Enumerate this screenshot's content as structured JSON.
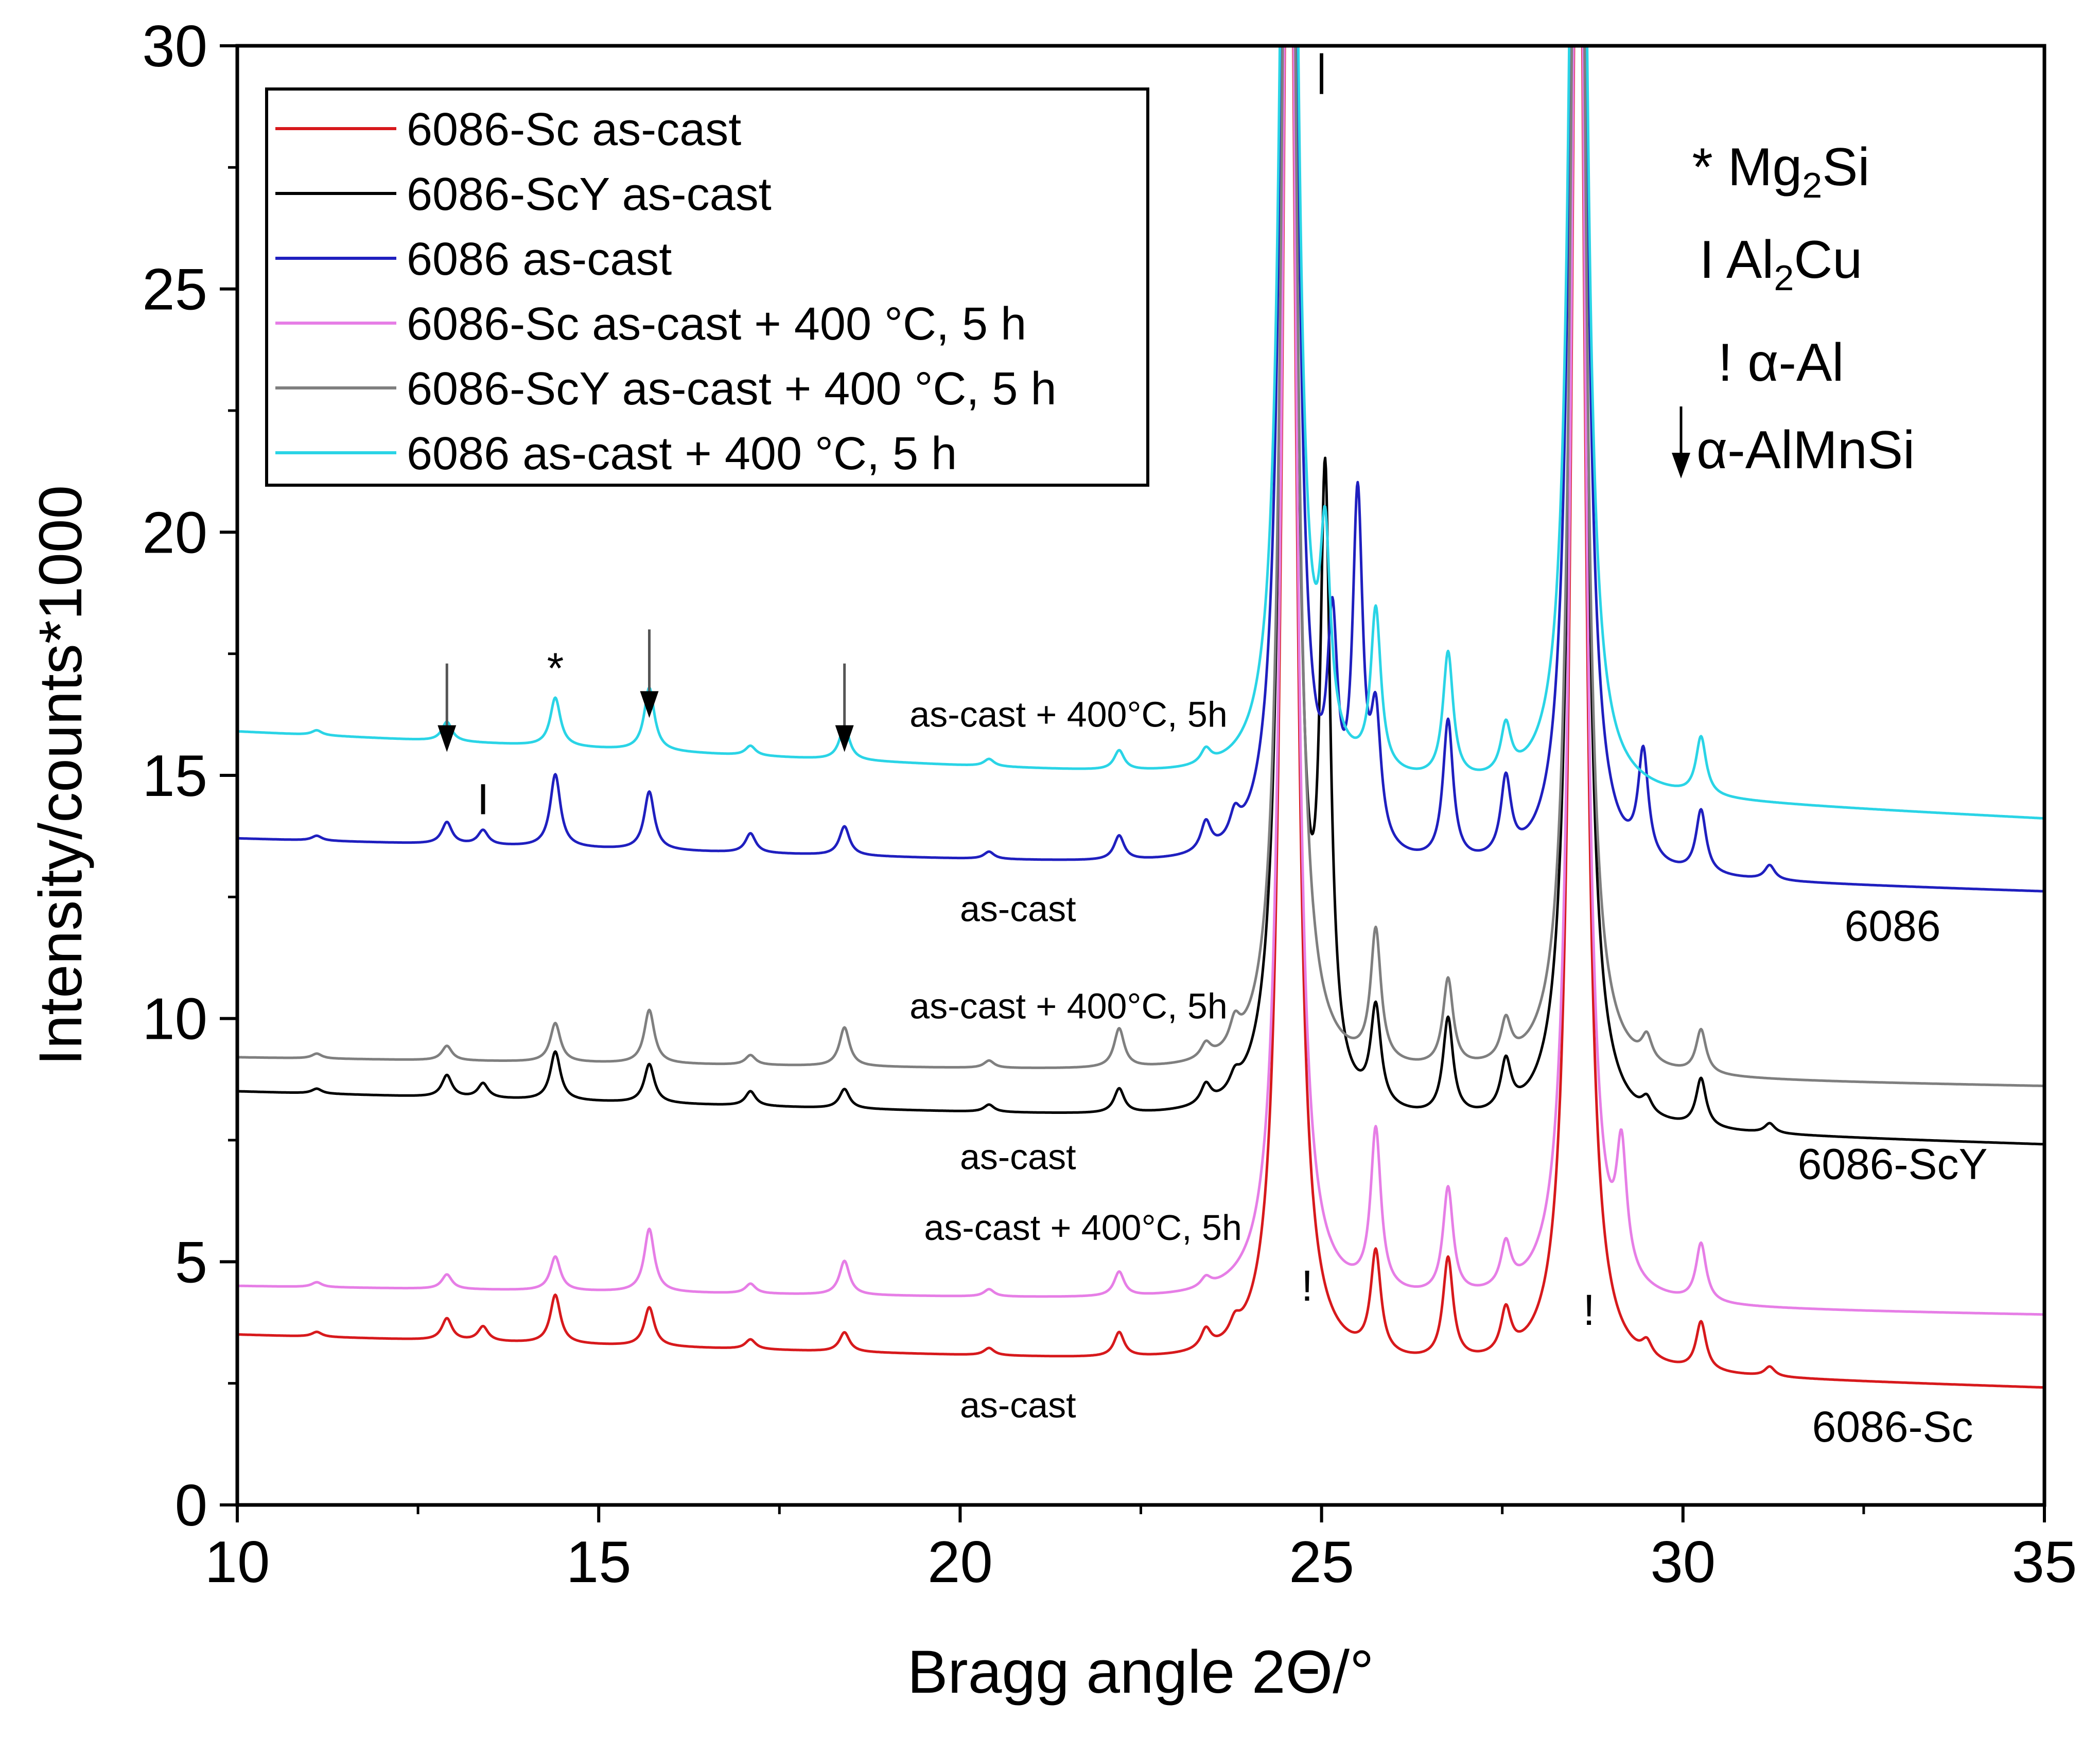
{
  "chart_data": {
    "type": "line",
    "xlabel": "Bragg angle 2Θ/°",
    "ylabel": "Intensity/counts*1000",
    "xlim": [
      10,
      35
    ],
    "ylim": [
      0,
      30
    ],
    "xticks": [
      10,
      15,
      20,
      25,
      30,
      35
    ],
    "yticks": [
      0,
      5,
      10,
      15,
      20,
      25,
      30
    ],
    "legend": {
      "position": "top-left"
    },
    "series": [
      {
        "name": "6086-Sc as-cast",
        "color": "#d7191c",
        "base_start": 3.5,
        "base_end": 2.4,
        "peaks": [
          [
            11.1,
            0.1
          ],
          [
            12.9,
            0.45
          ],
          [
            13.4,
            0.3
          ],
          [
            14.4,
            1.0
          ],
          [
            15.7,
            0.8
          ],
          [
            17.1,
            0.2
          ],
          [
            18.4,
            0.4
          ],
          [
            20.4,
            0.15
          ],
          [
            22.2,
            0.5
          ],
          [
            23.4,
            0.4
          ],
          [
            23.8,
            0.3
          ],
          [
            24.55,
            35
          ],
          [
            25.75,
            2.1
          ],
          [
            26.75,
            2.1
          ],
          [
            27.55,
            0.9
          ],
          [
            28.55,
            35
          ],
          [
            29.5,
            0.3
          ],
          [
            30.25,
            1.0
          ],
          [
            31.2,
            0.2
          ]
        ]
      },
      {
        "name": "6086-ScY as-cast",
        "color": "#000000",
        "base_start": 8.5,
        "base_end": 7.4,
        "peaks": [
          [
            11.1,
            0.1
          ],
          [
            12.9,
            0.45
          ],
          [
            13.4,
            0.3
          ],
          [
            14.4,
            1.0
          ],
          [
            15.7,
            0.8
          ],
          [
            17.1,
            0.3
          ],
          [
            18.4,
            0.4
          ],
          [
            20.4,
            0.15
          ],
          [
            22.2,
            0.5
          ],
          [
            23.4,
            0.4
          ],
          [
            23.8,
            0.3
          ],
          [
            24.55,
            35
          ],
          [
            25.05,
            12.0
          ],
          [
            25.75,
            2.0
          ],
          [
            26.75,
            2.0
          ],
          [
            27.55,
            1.0
          ],
          [
            28.55,
            35
          ],
          [
            29.5,
            0.3
          ],
          [
            30.25,
            1.0
          ],
          [
            31.2,
            0.2
          ]
        ]
      },
      {
        "name": "6086 as-cast",
        "color": "#1f1fbf",
        "base_start": 13.7,
        "base_end": 12.6,
        "peaks": [
          [
            11.1,
            0.1
          ],
          [
            12.9,
            0.45
          ],
          [
            13.4,
            0.3
          ],
          [
            14.4,
            1.5
          ],
          [
            15.7,
            1.2
          ],
          [
            17.1,
            0.4
          ],
          [
            18.4,
            0.6
          ],
          [
            20.4,
            0.15
          ],
          [
            22.2,
            0.5
          ],
          [
            23.4,
            0.6
          ],
          [
            23.8,
            0.5
          ],
          [
            24.55,
            35
          ],
          [
            25.15,
            4.0
          ],
          [
            25.5,
            7.0
          ],
          [
            25.75,
            2.5
          ],
          [
            26.75,
            2.9
          ],
          [
            27.55,
            1.6
          ],
          [
            28.55,
            35
          ],
          [
            29.45,
            2.2
          ],
          [
            30.25,
            1.3
          ],
          [
            31.2,
            0.3
          ]
        ]
      },
      {
        "name": "6086-Sc as-cast + 400 °C, 5 h",
        "color": "#e67ee6",
        "base_start": 4.5,
        "base_end": 3.9,
        "peaks": [
          [
            11.1,
            0.1
          ],
          [
            12.9,
            0.3
          ],
          [
            14.4,
            0.7
          ],
          [
            15.7,
            1.3
          ],
          [
            17.1,
            0.2
          ],
          [
            18.4,
            0.7
          ],
          [
            20.4,
            0.15
          ],
          [
            22.2,
            0.5
          ],
          [
            23.4,
            0.2
          ],
          [
            24.55,
            35
          ],
          [
            25.75,
            3.3
          ],
          [
            26.75,
            2.2
          ],
          [
            27.55,
            0.9
          ],
          [
            28.55,
            35
          ],
          [
            29.15,
            2.5
          ],
          [
            30.25,
            1.2
          ]
        ]
      },
      {
        "name": "6086-ScY as-cast + 400 °C, 5 h",
        "color": "#7f7f7f",
        "base_start": 9.2,
        "base_end": 8.6,
        "peaks": [
          [
            11.1,
            0.1
          ],
          [
            12.9,
            0.3
          ],
          [
            14.4,
            0.8
          ],
          [
            15.7,
            1.1
          ],
          [
            17.1,
            0.2
          ],
          [
            18.4,
            0.8
          ],
          [
            20.4,
            0.15
          ],
          [
            22.2,
            0.8
          ],
          [
            23.4,
            0.3
          ],
          [
            23.8,
            0.5
          ],
          [
            24.55,
            35
          ],
          [
            25.75,
            2.7
          ],
          [
            26.75,
            1.8
          ],
          [
            27.55,
            0.8
          ],
          [
            28.55,
            35
          ],
          [
            29.5,
            0.5
          ],
          [
            30.25,
            0.9
          ]
        ]
      },
      {
        "name": "6086 as-cast + 400 °C, 5 h",
        "color": "#2ad4e6",
        "base_start": 15.9,
        "base_end": 14.1,
        "peaks": [
          [
            11.1,
            0.1
          ],
          [
            12.9,
            0.4
          ],
          [
            14.4,
            1.0
          ],
          [
            15.7,
            1.3
          ],
          [
            17.1,
            0.2
          ],
          [
            18.4,
            0.7
          ],
          [
            20.4,
            0.15
          ],
          [
            22.2,
            0.4
          ],
          [
            23.4,
            0.3
          ],
          [
            24.55,
            35
          ],
          [
            25.05,
            4.0
          ],
          [
            25.75,
            3.3
          ],
          [
            26.75,
            2.6
          ],
          [
            27.55,
            1.0
          ],
          [
            28.55,
            35
          ],
          [
            30.25,
            1.2
          ]
        ]
      }
    ],
    "phase_legend": {
      "mg2si": {
        "symbol": "*",
        "text": "Mg",
        "sub": "2",
        "rest": "Si"
      },
      "al2cu": {
        "symbol": "I",
        "text": "Al",
        "sub": "2",
        "rest": "Cu"
      },
      "alpha_al": {
        "symbol": "!",
        "text": "α-Al"
      },
      "alpha_almnsi": {
        "text": "α-AlMnSi"
      }
    },
    "curve_annotations": [
      {
        "id": "ann-6086-heat",
        "text": "as-cast + 400°C, 5h",
        "x": 21.5,
        "y": 16.0
      },
      {
        "id": "ann-6086-cast",
        "text": "as-cast",
        "x": 20.8,
        "y": 12.0
      },
      {
        "id": "ann-6086",
        "text": "6086",
        "x": 32.9,
        "y": 11.6
      },
      {
        "id": "ann-scy-heat",
        "text": "as-cast + 400°C, 5h",
        "x": 21.5,
        "y": 10.0
      },
      {
        "id": "ann-scy-cast",
        "text": "as-cast",
        "x": 20.8,
        "y": 6.9
      },
      {
        "id": "ann-scy",
        "text": "6086-ScY",
        "x": 32.9,
        "y": 6.7
      },
      {
        "id": "ann-sc-heat",
        "text": "as-cast + 400°C, 5h",
        "x": 21.7,
        "y": 5.45
      },
      {
        "id": "ann-sc-cast",
        "text": "as-cast",
        "x": 20.8,
        "y": 1.8
      },
      {
        "id": "ann-sc",
        "text": "6086-Sc",
        "x": 32.9,
        "y": 1.3
      }
    ],
    "peak_markers": [
      {
        "id": "marker-almnsi-1",
        "type": "arrow",
        "x": 12.9,
        "y": 17.3
      },
      {
        "id": "marker-mg2si",
        "type": "text",
        "text": "*",
        "x": 14.4,
        "y": 16.9
      },
      {
        "id": "marker-almnsi-2",
        "type": "arrow",
        "x": 15.7,
        "y": 18.0
      },
      {
        "id": "marker-almnsi-3",
        "type": "arrow",
        "x": 18.4,
        "y": 17.3
      },
      {
        "id": "marker-al2cu",
        "type": "text",
        "text": "I",
        "x": 13.4,
        "y": 14.2
      },
      {
        "id": "marker-al-1",
        "type": "text",
        "text": "!",
        "x": 24.8,
        "y": 4.2
      },
      {
        "id": "marker-al-2",
        "type": "text",
        "text": "!",
        "x": 28.7,
        "y": 3.7
      },
      {
        "id": "marker-al-top",
        "type": "text",
        "text": "|",
        "x": 25.0,
        "y": 29.2
      }
    ]
  }
}
